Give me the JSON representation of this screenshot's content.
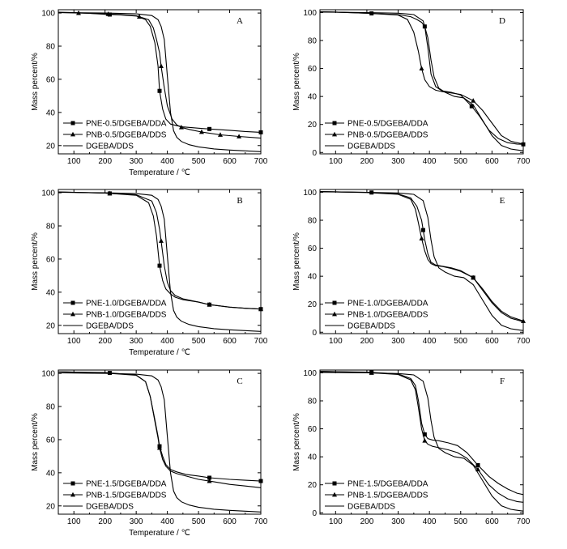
{
  "chart_data": [
    {
      "type": "line",
      "panel": "A",
      "xlabel": "Temperature / ℃",
      "ylabel": "Mass percent/%",
      "xlim": [
        50,
        700
      ],
      "ylim": [
        15,
        102
      ],
      "xticks": [
        100,
        200,
        300,
        400,
        500,
        600,
        700
      ],
      "yticks": [
        20,
        40,
        60,
        80,
        100
      ],
      "legend_position": "bottom-left",
      "series": [
        {
          "name": "PNE-0.5/DGEBA/DDA",
          "marker": "square",
          "marker_x": [
            215,
            375,
            535,
            700
          ],
          "x": [
            50,
            100,
            150,
            200,
            250,
            300,
            330,
            345,
            360,
            370,
            375,
            385,
            395,
            410,
            430,
            450,
            500,
            535,
            600,
            650,
            700
          ],
          "y": [
            100.5,
            100.3,
            99.8,
            99.2,
            98.8,
            98.2,
            96,
            92,
            82,
            68,
            53,
            42,
            36,
            33,
            32,
            31.3,
            30.5,
            30,
            29.2,
            28.5,
            28
          ]
        },
        {
          "name": "PNB-0.5/DGEBA/DDS",
          "marker": "triangle",
          "marker_x": [
            115,
            210,
            310,
            380,
            445,
            510,
            570,
            630
          ],
          "x": [
            50,
            100,
            150,
            200,
            250,
            300,
            340,
            355,
            365,
            375,
            380,
            390,
            400,
            415,
            430,
            445,
            475,
            510,
            570,
            630,
            700
          ],
          "y": [
            100.3,
            100.1,
            99.8,
            99.5,
            99,
            98.4,
            96,
            91,
            84,
            76,
            68,
            55,
            44,
            36,
            32.5,
            31,
            29.5,
            28.2,
            26.5,
            25.5,
            24.5
          ]
        },
        {
          "name": "DGEBA/DDS",
          "marker": "none",
          "marker_x": [],
          "x": [
            50,
            100,
            200,
            300,
            350,
            370,
            380,
            390,
            400,
            410,
            420,
            430,
            445,
            470,
            500,
            550,
            600,
            650,
            700
          ],
          "y": [
            100.3,
            100.2,
            100,
            99.5,
            98.5,
            96,
            92,
            84,
            62,
            40,
            29,
            25,
            22.5,
            20.5,
            19.2,
            18,
            17.3,
            16.8,
            16.3
          ]
        }
      ]
    },
    {
      "type": "line",
      "panel": "B",
      "xlabel": "Temperature / ℃",
      "ylabel": "Mass percent/%",
      "xlim": [
        50,
        700
      ],
      "ylim": [
        15,
        102
      ],
      "xticks": [
        100,
        200,
        300,
        400,
        500,
        600,
        700
      ],
      "yticks": [
        20,
        40,
        60,
        80,
        100
      ],
      "legend_position": "bottom-left",
      "series": [
        {
          "name": "PNE-1.0/DGEBA/DDA",
          "marker": "square",
          "marker_x": [
            215,
            375,
            535,
            700
          ],
          "x": [
            50,
            100,
            200,
            300,
            340,
            355,
            365,
            375,
            385,
            395,
            410,
            425,
            450,
            500,
            535,
            600,
            650,
            700
          ],
          "y": [
            100.5,
            100.3,
            99.8,
            98.5,
            94,
            86,
            74,
            56,
            47,
            42,
            39,
            37,
            35.5,
            34,
            32.5,
            31,
            30.3,
            29.8
          ]
        },
        {
          "name": "PNB-1.0/DGEBA/DDS",
          "marker": "triangle",
          "marker_x": [
            215,
            380,
            535,
            700
          ],
          "x": [
            50,
            100,
            200,
            300,
            350,
            365,
            375,
            380,
            390,
            400,
            410,
            425,
            450,
            500,
            535,
            600,
            650,
            700
          ],
          "y": [
            100.5,
            100.3,
            99.8,
            98.8,
            95,
            88,
            78,
            71,
            56,
            46,
            41,
            38,
            36,
            34,
            32.5,
            31,
            30.3,
            29.8
          ]
        },
        {
          "name": "DGEBA/DDS",
          "marker": "none",
          "marker_x": [],
          "x": [
            50,
            100,
            200,
            300,
            350,
            370,
            380,
            390,
            400,
            410,
            420,
            430,
            445,
            470,
            500,
            550,
            600,
            650,
            700
          ],
          "y": [
            100.3,
            100.2,
            100,
            99.5,
            98.5,
            96,
            92,
            84,
            62,
            40,
            29,
            25,
            22.5,
            20.5,
            19.2,
            18,
            17.3,
            16.8,
            16.3
          ]
        }
      ]
    },
    {
      "type": "line",
      "panel": "C",
      "xlabel": "Temperature / ℃",
      "ylabel": "Mass percent/%",
      "xlim": [
        50,
        700
      ],
      "ylim": [
        15,
        102
      ],
      "xticks": [
        100,
        200,
        300,
        400,
        500,
        600,
        700
      ],
      "yticks": [
        20,
        40,
        60,
        80,
        100
      ],
      "legend_position": "bottom-left",
      "series": [
        {
          "name": "PNE-1.5/DGEBA/DDA",
          "marker": "square",
          "marker_x": [
            215,
            375,
            535,
            700
          ],
          "x": [
            50,
            100,
            200,
            300,
            330,
            345,
            360,
            370,
            375,
            385,
            395,
            410,
            430,
            460,
            500,
            535,
            600,
            650,
            700
          ],
          "y": [
            101,
            100.8,
            100.5,
            99,
            95,
            86,
            72,
            62,
            56,
            50,
            45,
            42,
            40.5,
            39,
            38,
            37,
            36,
            35.5,
            35
          ]
        },
        {
          "name": "PNB-1.5/DGEBA/DDS",
          "marker": "triangle",
          "marker_x": [
            375,
            535
          ],
          "x": [
            50,
            100,
            200,
            300,
            330,
            345,
            360,
            370,
            375,
            385,
            395,
            410,
            430,
            460,
            500,
            535,
            600,
            650,
            700
          ],
          "y": [
            101,
            100.8,
            100.2,
            98.8,
            95,
            86,
            71,
            61,
            55,
            48,
            44,
            41,
            39.5,
            38,
            36,
            35,
            33,
            32,
            31
          ]
        },
        {
          "name": "DGEBA/DDS",
          "marker": "none",
          "marker_x": [],
          "x": [
            50,
            100,
            200,
            300,
            350,
            370,
            380,
            390,
            400,
            410,
            420,
            430,
            445,
            470,
            500,
            550,
            600,
            650,
            700
          ],
          "y": [
            100.3,
            100.2,
            100,
            99.5,
            98.5,
            96,
            92,
            84,
            62,
            40,
            29,
            25,
            22.5,
            20.5,
            19.2,
            18,
            17.3,
            16.8,
            16.3
          ]
        }
      ]
    },
    {
      "type": "line",
      "panel": "D",
      "xlabel": "",
      "ylabel": "Mass percent/%",
      "xlim": [
        50,
        700
      ],
      "ylim": [
        -1,
        102
      ],
      "xticks": [
        100,
        200,
        300,
        400,
        500,
        600,
        700
      ],
      "yticks": [
        0,
        20,
        40,
        60,
        80,
        100
      ],
      "legend_position": "bottom-left",
      "series": [
        {
          "name": "PNE-0.5/DGEBA/DDA",
          "marker": "square",
          "marker_x": [
            215,
            385,
            535,
            700
          ],
          "x": [
            50,
            100,
            200,
            300,
            340,
            360,
            375,
            385,
            395,
            405,
            420,
            440,
            470,
            500,
            535,
            560,
            590,
            620,
            650,
            680,
            700
          ],
          "y": [
            100.5,
            100.3,
            99.5,
            98.5,
            97,
            95,
            93,
            90,
            75,
            56,
            47,
            44,
            43,
            41,
            33,
            26,
            16,
            10,
            7,
            6,
            5.8
          ]
        },
        {
          "name": "PNB-0.5/DGEBA/DDS",
          "marker": "triangle",
          "marker_x": [
            375,
            540
          ],
          "x": [
            50,
            100,
            200,
            300,
            330,
            350,
            365,
            375,
            385,
            400,
            420,
            440,
            470,
            500,
            540,
            570,
            600,
            630,
            660,
            700
          ],
          "y": [
            100.5,
            100.3,
            99.5,
            98.2,
            95,
            86,
            72,
            60,
            52,
            47,
            44.5,
            43.5,
            42.5,
            41.5,
            37,
            30,
            21,
            12,
            8,
            6
          ]
        },
        {
          "name": "DGEBA/DDS",
          "marker": "none",
          "marker_x": [],
          "x": [
            50,
            100,
            200,
            300,
            350,
            380,
            395,
            405,
            415,
            430,
            450,
            480,
            510,
            540,
            570,
            600,
            630,
            660,
            690,
            700
          ],
          "y": [
            100.3,
            100.2,
            100,
            99.5,
            98.5,
            94,
            82,
            66,
            54,
            46,
            43,
            40,
            39,
            34,
            23,
            12,
            5,
            2.5,
            1.5,
            1.2
          ]
        }
      ]
    },
    {
      "type": "line",
      "panel": "E",
      "xlabel": "",
      "ylabel": "Mass percent/%",
      "xlim": [
        50,
        700
      ],
      "ylim": [
        -1,
        102
      ],
      "xticks": [
        100,
        200,
        300,
        400,
        500,
        600,
        700
      ],
      "yticks": [
        0,
        20,
        40,
        60,
        80,
        100
      ],
      "legend_position": "bottom-left",
      "series": [
        {
          "name": "PNE-1.0/DGEBA/DDA",
          "marker": "square",
          "marker_x": [
            215,
            380,
            540
          ],
          "x": [
            50,
            100,
            200,
            300,
            340,
            360,
            375,
            385,
            395,
            405,
            420,
            440,
            470,
            500,
            540,
            570,
            600,
            630,
            660,
            700
          ],
          "y": [
            100.5,
            100.3,
            100,
            98.8,
            96,
            90,
            80,
            66,
            56,
            50,
            48,
            47.2,
            46,
            44,
            39,
            30,
            21,
            14,
            10,
            7.5
          ]
        },
        {
          "name": "PNB-1.0/DGEBA/DDS",
          "marker": "triangle",
          "marker_x": [
            375,
            540,
            700
          ],
          "x": [
            50,
            100,
            200,
            300,
            340,
            355,
            365,
            375,
            385,
            395,
            405,
            420,
            440,
            470,
            500,
            540,
            570,
            600,
            630,
            660,
            700
          ],
          "y": [
            100.5,
            100.3,
            99.8,
            98.5,
            95,
            88,
            78,
            67,
            58,
            52,
            49,
            47.5,
            47,
            45.5,
            43.5,
            39,
            31,
            22,
            15,
            11,
            8
          ]
        },
        {
          "name": "DGEBA/DDS",
          "marker": "none",
          "marker_x": [],
          "x": [
            50,
            100,
            200,
            300,
            350,
            380,
            395,
            405,
            415,
            430,
            450,
            480,
            510,
            540,
            570,
            600,
            630,
            660,
            690,
            700
          ],
          "y": [
            100.3,
            100.2,
            100,
            99.5,
            98.5,
            94,
            82,
            66,
            54,
            46,
            43,
            40,
            39,
            34,
            23,
            12,
            5,
            2.5,
            1.5,
            1.2
          ]
        }
      ]
    },
    {
      "type": "line",
      "panel": "F",
      "xlabel": "",
      "ylabel": "Mass percent/%",
      "xlim": [
        50,
        700
      ],
      "ylim": [
        -1,
        102
      ],
      "xticks": [
        100,
        200,
        300,
        400,
        500,
        600,
        700
      ],
      "yticks": [
        0,
        20,
        40,
        60,
        80,
        100
      ],
      "legend_position": "bottom-left",
      "series": [
        {
          "name": "PNE-1.5/DGEBA/DDA",
          "marker": "square",
          "marker_x": [
            215,
            385,
            555
          ],
          "x": [
            50,
            100,
            200,
            300,
            340,
            355,
            365,
            375,
            385,
            395,
            410,
            430,
            460,
            490,
            520,
            555,
            590,
            620,
            650,
            680,
            700
          ],
          "y": [
            101,
            100.8,
            100.5,
            99.2,
            96,
            91,
            80,
            64,
            56,
            53,
            52,
            51.5,
            50,
            48,
            43,
            34,
            26,
            21,
            17,
            14,
            13
          ]
        },
        {
          "name": "PNB-1.5/DGEBA/DDS",
          "marker": "triangle",
          "marker_x": [
            215,
            385,
            555
          ],
          "x": [
            50,
            100,
            200,
            300,
            340,
            355,
            365,
            375,
            385,
            395,
            410,
            430,
            460,
            490,
            520,
            555,
            590,
            620,
            650,
            680,
            700
          ],
          "y": [
            101,
            100.8,
            100.2,
            98.8,
            95,
            88,
            75,
            60,
            51.5,
            49,
            47.5,
            46.5,
            45,
            43,
            39,
            31,
            20,
            14,
            10,
            8,
            7.5
          ]
        },
        {
          "name": "DGEBA/DDS",
          "marker": "none",
          "marker_x": [],
          "x": [
            50,
            100,
            200,
            300,
            350,
            380,
            395,
            405,
            415,
            430,
            450,
            480,
            510,
            540,
            570,
            600,
            630,
            660,
            690,
            700
          ],
          "y": [
            100.3,
            100.2,
            100,
            99.5,
            98.5,
            94,
            82,
            66,
            54,
            46,
            43,
            40,
            39,
            34,
            23,
            12,
            5,
            2.5,
            1.5,
            1.2
          ]
        }
      ]
    }
  ]
}
